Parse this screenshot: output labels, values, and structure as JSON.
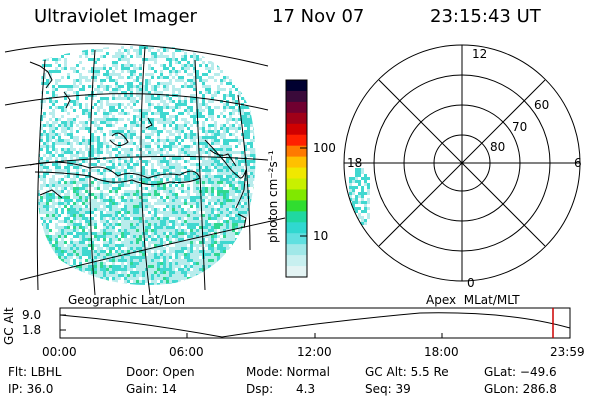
{
  "header": {
    "instrument": "Ultraviolet Imager",
    "date": "17 Nov 07",
    "time": "23:15:43 UT"
  },
  "colorbar": {
    "unit_label": "photon cm⁻²s⁻¹",
    "ticks": [
      "100",
      "10"
    ],
    "colors": [
      "#000030",
      "#3a0a3a",
      "#700030",
      "#a00018",
      "#d00000",
      "#ff2000",
      "#ff7a00",
      "#ffc000",
      "#f0e800",
      "#c8f000",
      "#80e800",
      "#30dd30",
      "#20d8a0",
      "#30d8d0",
      "#60e0e0",
      "#a0e8e8",
      "#c8f0f0",
      "#e4f4f4"
    ]
  },
  "left_panel": {
    "label": "Geographic Lat/Lon"
  },
  "right_panel": {
    "label": "Apex  MLat/MLT",
    "mlt_labels": {
      "top": "12",
      "left": "18",
      "right": "6",
      "bottom": "0"
    },
    "lat_labels": [
      "60",
      "70",
      "80"
    ]
  },
  "altitude_plot": {
    "ylabel": "GC Alt",
    "y_ticks": [
      "9.0",
      "1.8"
    ],
    "x_ticks": [
      "00:00",
      "06:00",
      "12:00",
      "18:00",
      "23:59"
    ]
  },
  "status": {
    "flt": "Flt: LBHL",
    "ip": "IP: 36.0",
    "door": "Door: Open",
    "gain": "Gain: 14",
    "mode": "Mode: Normal",
    "dsp": "Dsp:      4.3",
    "gc_alt": "GC Alt: 5.5 Re",
    "seq": "Seq: 39",
    "glat": "GLat: −49.6",
    "glon": "GLon: 286.8"
  },
  "colors": {
    "aurora_dot": "#40d8d0",
    "aurora_light": "#b8ecec",
    "aurora_green": "#30d890",
    "marker_red": "#cc0000"
  }
}
